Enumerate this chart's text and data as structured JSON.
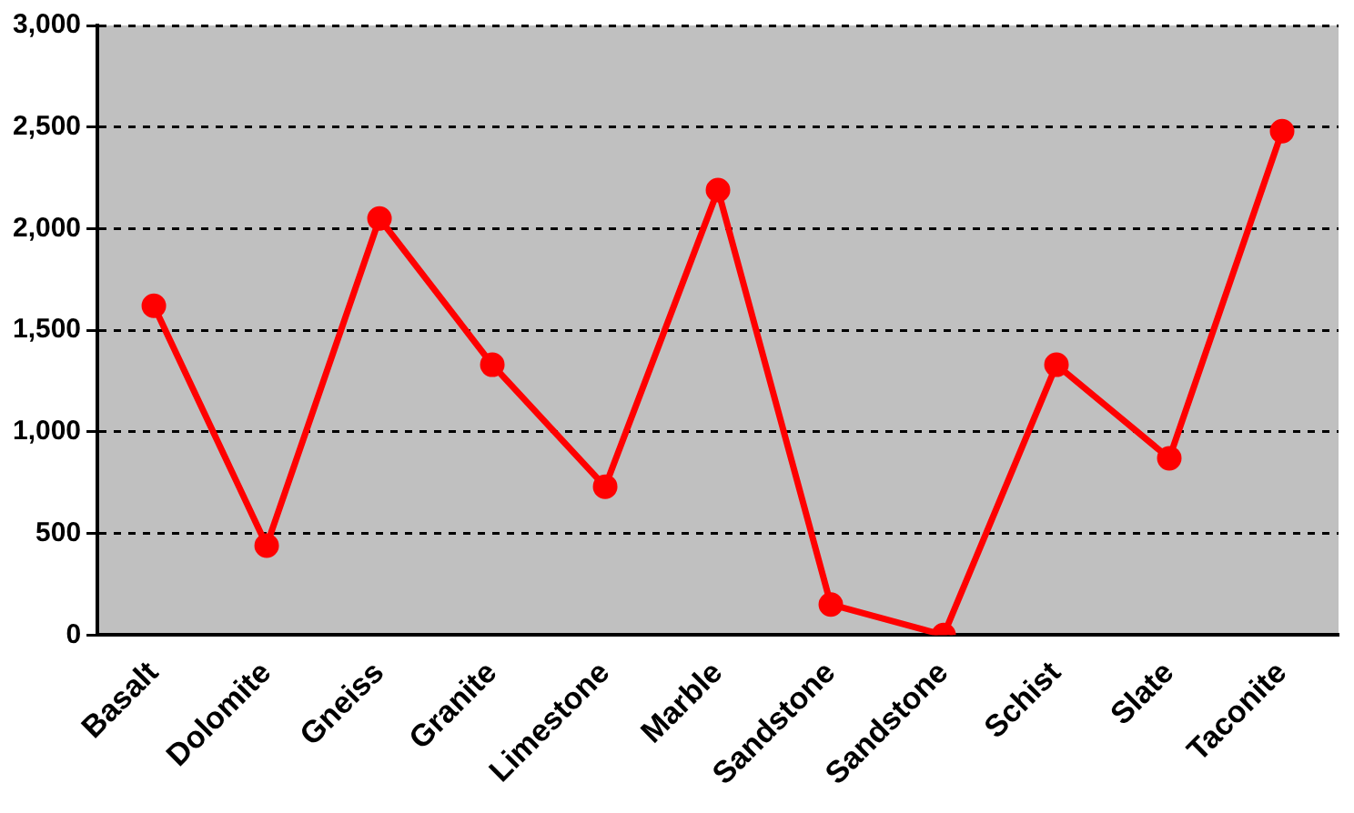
{
  "chart_data": {
    "type": "line",
    "categories": [
      "Basalt",
      "Dolomite",
      "Gneiss",
      "Granite",
      "Limestone",
      "Marble",
      "Sandstone",
      "Sandstone",
      "Schist",
      "Slate",
      "Taconite"
    ],
    "series": [
      {
        "color": "#ff0000",
        "values": [
          1620,
          440,
          2050,
          1330,
          730,
          2190,
          150,
          0,
          1330,
          870,
          2480
        ]
      }
    ],
    "ylim": [
      0,
      3000
    ],
    "yticks": [
      {
        "value": 0,
        "label": "0"
      },
      {
        "value": 500,
        "label": "500"
      },
      {
        "value": 1000,
        "label": "1,000"
      },
      {
        "value": 1500,
        "label": "1,500"
      },
      {
        "value": 2000,
        "label": "2,000"
      },
      {
        "value": 2500,
        "label": "2,500"
      },
      {
        "value": 3000,
        "label": "3,000"
      }
    ],
    "grid": "y",
    "legend": false,
    "marker": "circle",
    "line_style": "solid"
  }
}
